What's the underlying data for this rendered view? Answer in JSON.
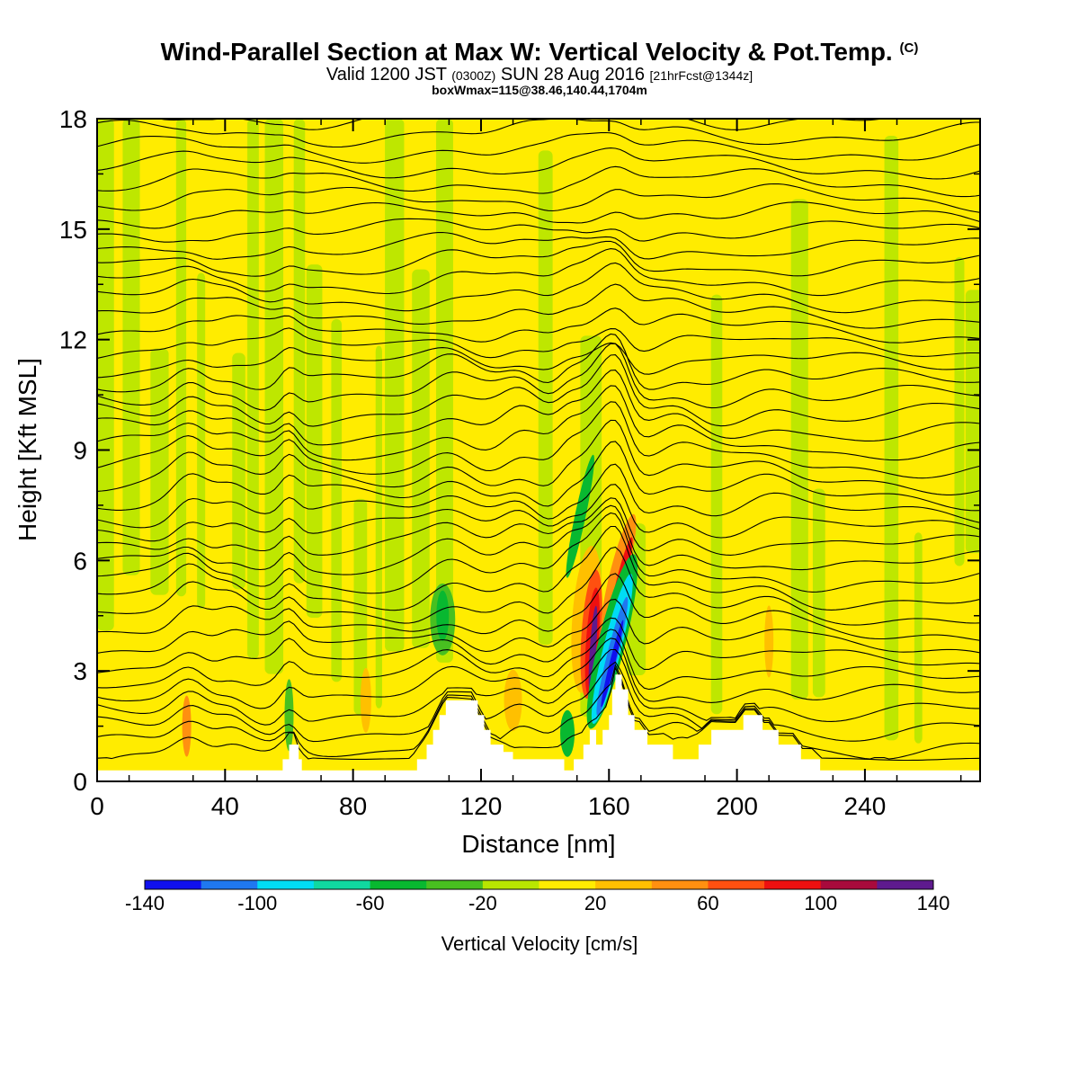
{
  "header": {
    "title": "Wind-Parallel Section at Max W: Vertical Velocity & Pot.Temp.",
    "copyright": "(C)",
    "valid_prefix": "Valid 1200 JST",
    "valid_utc": "(0300Z)",
    "valid_date": "SUN 28 Aug 2016",
    "forecast": "[21hrFcst@1344z]",
    "box_info": "boxWmax=115@38.46,140.44,1704m"
  },
  "colorbar": {
    "label": "Vertical Velocity [cm/s]",
    "tick_labels": [
      "-140",
      "-100",
      "-60",
      "-20",
      "20",
      "60",
      "100",
      "140"
    ],
    "colors": [
      "#1010ee",
      "#1f78f0",
      "#00dcf5",
      "#10d8a0",
      "#08b830",
      "#48c020",
      "#b8e600",
      "#ffec00",
      "#ffc000",
      "#ff9010",
      "#ff5010",
      "#ee1010",
      "#a80a3c",
      "#5e1a8e"
    ]
  },
  "chart_data": {
    "type": "heatmap",
    "title": "Wind-Parallel Section at Max W: Vertical Velocity & Pot.Temp.",
    "xlabel": "Distance [nm]",
    "ylabel": "Height [Kft MSL]",
    "xlim": [
      0,
      276
    ],
    "ylim": [
      0,
      18
    ],
    "x_ticks": [
      0,
      40,
      80,
      120,
      160,
      200,
      240
    ],
    "y_ticks": [
      0,
      3,
      6,
      9,
      12,
      15,
      18
    ],
    "x_tick_labels": [
      "0",
      "40",
      "80",
      "120",
      "160",
      "200",
      "240"
    ],
    "y_tick_labels": [
      "0",
      "3",
      "6",
      "9",
      "12",
      "15",
      "18"
    ],
    "colorbar_range": [
      -140,
      140
    ],
    "colorbar_interval": 20,
    "field": "vertical velocity (cm/s), shaded; potential temperature, contoured",
    "max_vertical_velocity": 115,
    "max_location": "38.46,140.44,1704m",
    "terrain_profile": [
      [
        0,
        0.3
      ],
      [
        57,
        0.3
      ],
      [
        58,
        0.6
      ],
      [
        60,
        1.0
      ],
      [
        62,
        1.0
      ],
      [
        63,
        0.6
      ],
      [
        64,
        0.3
      ],
      [
        98,
        0.3
      ],
      [
        100,
        0.6
      ],
      [
        103,
        1.0
      ],
      [
        105,
        1.4
      ],
      [
        107,
        1.8
      ],
      [
        109,
        2.2
      ],
      [
        117,
        2.2
      ],
      [
        119,
        1.8
      ],
      [
        121,
        1.4
      ],
      [
        123,
        1.0
      ],
      [
        127,
        0.8
      ],
      [
        130,
        0.6
      ],
      [
        140,
        0.6
      ],
      [
        145,
        0.6
      ],
      [
        146,
        0.3
      ],
      [
        149,
        0.6
      ],
      [
        152,
        1.0
      ],
      [
        154,
        1.4
      ],
      [
        156,
        1.0
      ],
      [
        158,
        1.4
      ],
      [
        160,
        1.8
      ],
      [
        161,
        2.5
      ],
      [
        162,
        2.9
      ],
      [
        164,
        2.5
      ],
      [
        166,
        1.8
      ],
      [
        168,
        1.4
      ],
      [
        170,
        1.4
      ],
      [
        172,
        1.0
      ],
      [
        178,
        1.0
      ],
      [
        180,
        0.6
      ],
      [
        188,
        1.0
      ],
      [
        192,
        1.4
      ],
      [
        200,
        1.4
      ],
      [
        202,
        1.8
      ],
      [
        206,
        1.8
      ],
      [
        208,
        1.4
      ],
      [
        210,
        1.4
      ],
      [
        213,
        1.0
      ],
      [
        218,
        1.0
      ],
      [
        220,
        0.6
      ],
      [
        224,
        0.6
      ],
      [
        226,
        0.3
      ],
      [
        276,
        0.3
      ]
    ],
    "features": [
      {
        "type": "updraft",
        "x": 154.5,
        "y_range": [
          1.5,
          6.2
        ],
        "peak": 115
      },
      {
        "type": "downdraft",
        "x": 161,
        "y_range": [
          1.0,
          6.5
        ],
        "peak": -140
      },
      {
        "type": "updraft",
        "x": 163.5,
        "y_range": [
          3.5,
          7.5
        ],
        "peak": 80
      }
    ]
  }
}
